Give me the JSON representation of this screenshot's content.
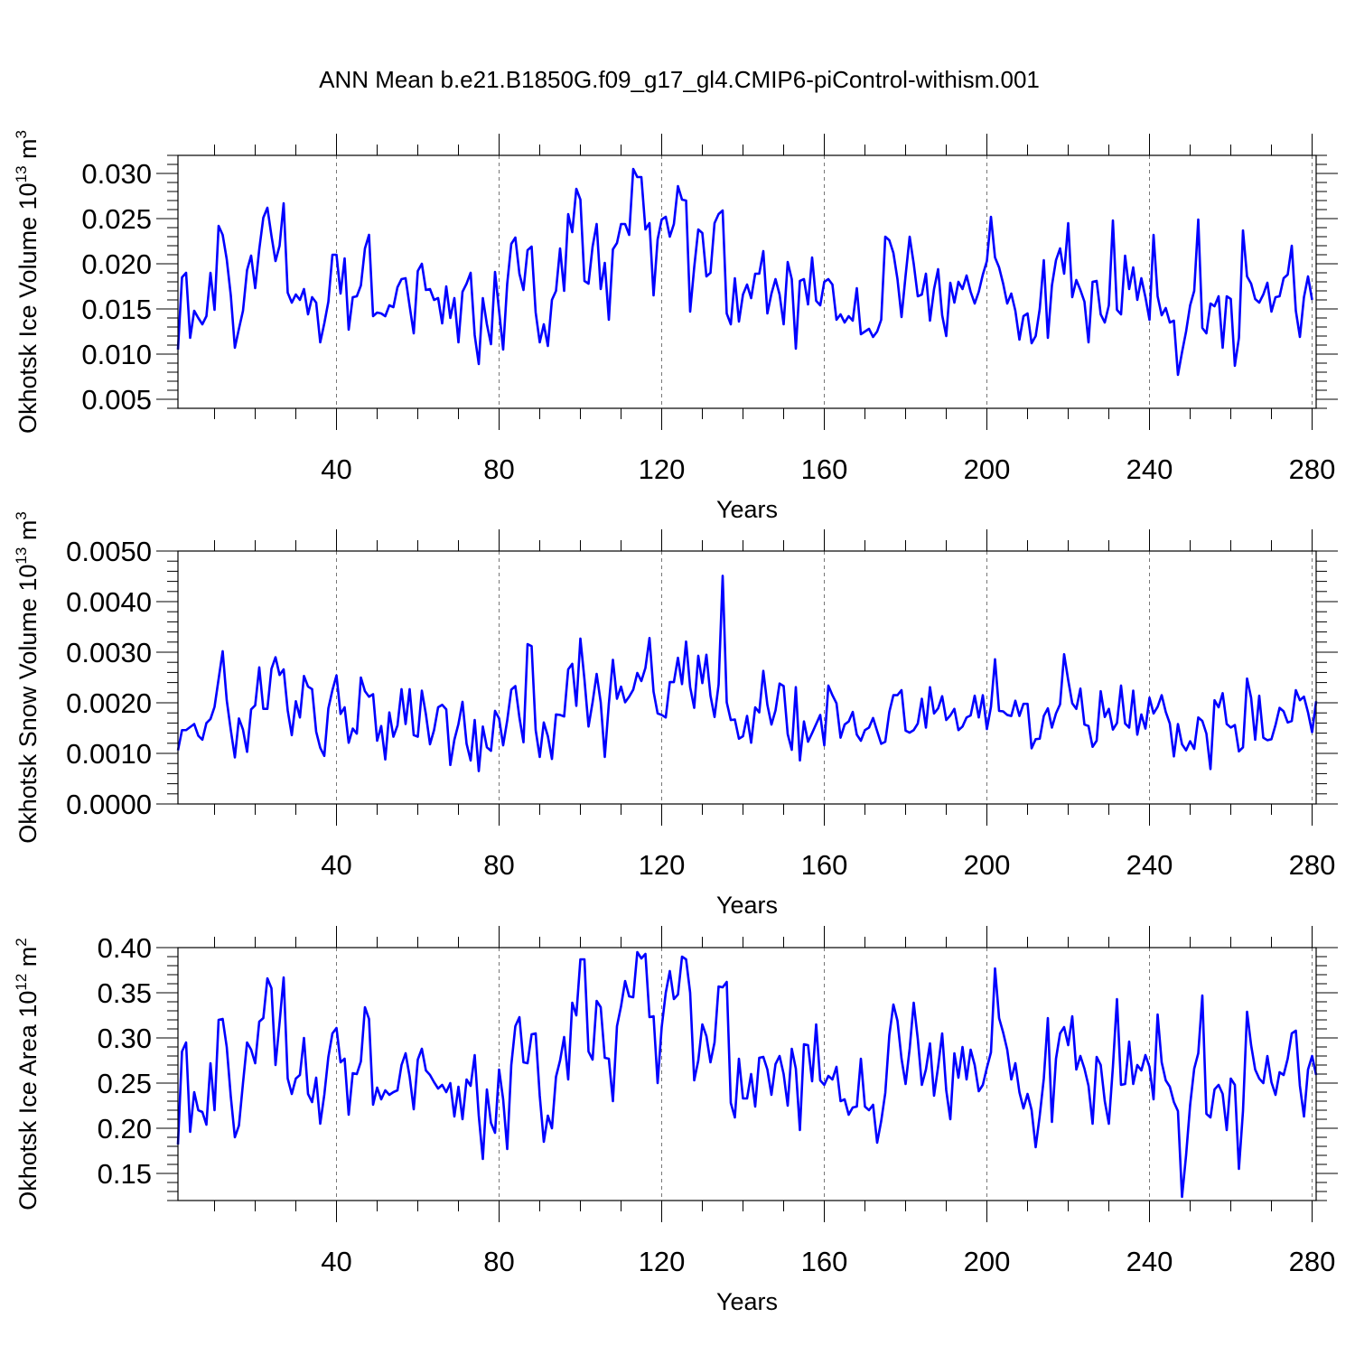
{
  "chart_data": {
    "title": "ANN Mean b.e21.B1850G.f09_g17_gl4.CMIP6-piControl-withism.001",
    "line_color": "#0000ff",
    "panels": [
      {
        "type": "line",
        "ylabel": {
          "main": "Okhotsk Ice Volume 10",
          "exponent": "13",
          "unit": "m",
          "unit_exponent": "3"
        },
        "xlabel": "Years",
        "xlim": [
          1,
          281
        ],
        "xticks": [
          "40",
          "80",
          "120",
          "160",
          "200",
          "240",
          "280"
        ],
        "ylim": [
          0.004,
          0.032
        ],
        "yticks": [
          "0.005",
          "0.010",
          "0.015",
          "0.020",
          "0.025",
          "0.030"
        ],
        "values": [
          0.0105,
          0.0185,
          0.019,
          0.0118,
          0.0148,
          0.014,
          0.0133,
          0.0142,
          0.019,
          0.0149,
          0.0242,
          0.0232,
          0.0205,
          0.0165,
          0.0107,
          0.0128,
          0.0148,
          0.0193,
          0.0209,
          0.0173,
          0.0216,
          0.0251,
          0.0262,
          0.0231,
          0.0203,
          0.022,
          0.0267,
          0.0168,
          0.0157,
          0.0166,
          0.016,
          0.0172,
          0.0144,
          0.0163,
          0.0157,
          0.0113,
          0.0134,
          0.0158,
          0.021,
          0.021,
          0.0167,
          0.0206,
          0.0127,
          0.0163,
          0.0164,
          0.0176,
          0.0217,
          0.0232,
          0.0142,
          0.0146,
          0.0145,
          0.0142,
          0.0154,
          0.0152,
          0.0174,
          0.0183,
          0.0184,
          0.0153,
          0.0123,
          0.0192,
          0.02,
          0.0171,
          0.0172,
          0.016,
          0.0162,
          0.0134,
          0.0175,
          0.014,
          0.0162,
          0.0113,
          0.0169,
          0.0178,
          0.019,
          0.0121,
          0.0089,
          0.0162,
          0.0133,
          0.0111,
          0.0191,
          0.0148,
          0.0105,
          0.0178,
          0.0222,
          0.0229,
          0.0189,
          0.0171,
          0.0215,
          0.0219,
          0.0146,
          0.0113,
          0.0133,
          0.0109,
          0.016,
          0.017,
          0.0217,
          0.017,
          0.0255,
          0.0235,
          0.0283,
          0.0271,
          0.0181,
          0.0178,
          0.0219,
          0.0244,
          0.0172,
          0.0201,
          0.0138,
          0.0216,
          0.0223,
          0.0244,
          0.0244,
          0.0232,
          0.0305,
          0.0296,
          0.0296,
          0.0238,
          0.0245,
          0.0165,
          0.0227,
          0.0249,
          0.0252,
          0.023,
          0.0244,
          0.0286,
          0.0271,
          0.027,
          0.0147,
          0.0196,
          0.0238,
          0.0234,
          0.0186,
          0.019,
          0.0245,
          0.0255,
          0.0259,
          0.0145,
          0.0133,
          0.0184,
          0.0136,
          0.0166,
          0.0177,
          0.0162,
          0.0189,
          0.0189,
          0.0214,
          0.0145,
          0.0167,
          0.0183,
          0.0166,
          0.0133,
          0.0202,
          0.0183,
          0.0106,
          0.0181,
          0.0183,
          0.0155,
          0.0207,
          0.0159,
          0.0154,
          0.018,
          0.0183,
          0.0177,
          0.0138,
          0.0144,
          0.0135,
          0.0142,
          0.0137,
          0.0173,
          0.0122,
          0.0125,
          0.0128,
          0.0119,
          0.0125,
          0.0138,
          0.023,
          0.0226,
          0.0212,
          0.0183,
          0.0141,
          0.0187,
          0.023,
          0.02,
          0.0164,
          0.0166,
          0.0189,
          0.0137,
          0.0172,
          0.0194,
          0.0143,
          0.012,
          0.0179,
          0.0157,
          0.018,
          0.0172,
          0.0187,
          0.0169,
          0.0156,
          0.0169,
          0.0188,
          0.0203,
          0.0252,
          0.0207,
          0.0196,
          0.0178,
          0.0156,
          0.0167,
          0.0148,
          0.0116,
          0.0142,
          0.0145,
          0.0112,
          0.012,
          0.015,
          0.0204,
          0.0118,
          0.0176,
          0.0204,
          0.0217,
          0.0189,
          0.0245,
          0.0163,
          0.0182,
          0.0171,
          0.0158,
          0.0113,
          0.018,
          0.0181,
          0.0144,
          0.0135,
          0.0154,
          0.0248,
          0.0149,
          0.0144,
          0.0209,
          0.0172,
          0.0196,
          0.016,
          0.0184,
          0.0163,
          0.0138,
          0.0232,
          0.0164,
          0.0143,
          0.0151,
          0.0135,
          0.0137,
          0.0077,
          0.0102,
          0.0125,
          0.0154,
          0.017,
          0.0249,
          0.0129,
          0.0123,
          0.0156,
          0.0153,
          0.0164,
          0.0107,
          0.0164,
          0.0161,
          0.0087,
          0.0118,
          0.0237,
          0.0186,
          0.0178,
          0.0161,
          0.0157,
          0.0166,
          0.0179,
          0.0147,
          0.0163,
          0.0164,
          0.0184,
          0.0188,
          0.022,
          0.0148,
          0.0119,
          0.0163,
          0.0186,
          0.016
        ]
      },
      {
        "type": "line",
        "ylabel": {
          "main": "Okhotsk Snow Volume 10",
          "exponent": "13",
          "unit": "m",
          "unit_exponent": "3"
        },
        "xlabel": "Years",
        "xlim": [
          1,
          281
        ],
        "xticks": [
          "40",
          "80",
          "120",
          "160",
          "200",
          "240",
          "280"
        ],
        "ylim": [
          0.0,
          0.005
        ],
        "yticks": [
          "0.0000",
          "0.0010",
          "0.0020",
          "0.0030",
          "0.0040",
          "0.0050"
        ],
        "values": [
          0.00106,
          0.00146,
          0.00146,
          0.00152,
          0.00158,
          0.00135,
          0.00127,
          0.0016,
          0.00168,
          0.00192,
          0.00247,
          0.00302,
          0.00205,
          0.00146,
          0.00092,
          0.00169,
          0.00147,
          0.00103,
          0.00187,
          0.00195,
          0.0027,
          0.00188,
          0.00188,
          0.00267,
          0.0029,
          0.00255,
          0.00266,
          0.00185,
          0.00136,
          0.00203,
          0.00171,
          0.00253,
          0.00232,
          0.00227,
          0.00143,
          0.00111,
          0.00095,
          0.00189,
          0.00225,
          0.00254,
          0.00178,
          0.00191,
          0.00121,
          0.00149,
          0.00139,
          0.0025,
          0.00223,
          0.00212,
          0.00217,
          0.00125,
          0.00154,
          0.00088,
          0.00181,
          0.00133,
          0.00155,
          0.00227,
          0.00158,
          0.00227,
          0.00136,
          0.00133,
          0.00224,
          0.00177,
          0.00118,
          0.00146,
          0.00191,
          0.00196,
          0.00187,
          0.00077,
          0.00127,
          0.00158,
          0.00202,
          0.00119,
          0.00086,
          0.00166,
          0.00065,
          0.00153,
          0.00112,
          0.00105,
          0.00184,
          0.00169,
          0.00116,
          0.00165,
          0.00226,
          0.00233,
          0.00171,
          0.00122,
          0.00316,
          0.00312,
          0.00146,
          0.00093,
          0.00161,
          0.00134,
          0.00089,
          0.00177,
          0.00176,
          0.00173,
          0.00266,
          0.00277,
          0.00194,
          0.00327,
          0.00246,
          0.00153,
          0.00201,
          0.00257,
          0.00201,
          0.00093,
          0.00198,
          0.00285,
          0.00208,
          0.00232,
          0.00201,
          0.00212,
          0.00226,
          0.00259,
          0.00243,
          0.00269,
          0.00328,
          0.00222,
          0.00179,
          0.00176,
          0.00171,
          0.00241,
          0.00241,
          0.00289,
          0.00237,
          0.00321,
          0.00231,
          0.0019,
          0.00293,
          0.00239,
          0.00295,
          0.00214,
          0.00172,
          0.00236,
          0.00451,
          0.00201,
          0.00166,
          0.00167,
          0.00129,
          0.00134,
          0.00174,
          0.00121,
          0.00191,
          0.00181,
          0.00263,
          0.00196,
          0.00157,
          0.00185,
          0.00238,
          0.00233,
          0.00138,
          0.00107,
          0.00231,
          0.00086,
          0.00163,
          0.00123,
          0.0014,
          0.00158,
          0.00176,
          0.00116,
          0.00234,
          0.00215,
          0.00199,
          0.00131,
          0.00157,
          0.00163,
          0.00182,
          0.00137,
          0.00125,
          0.00146,
          0.00151,
          0.0017,
          0.00144,
          0.00119,
          0.00123,
          0.00182,
          0.00215,
          0.00215,
          0.00225,
          0.00145,
          0.00141,
          0.00146,
          0.00159,
          0.00208,
          0.00151,
          0.00231,
          0.00179,
          0.00189,
          0.00213,
          0.00166,
          0.00175,
          0.00188,
          0.00146,
          0.00153,
          0.00171,
          0.00175,
          0.00214,
          0.00171,
          0.00215,
          0.00148,
          0.00192,
          0.00286,
          0.00184,
          0.00183,
          0.00176,
          0.00174,
          0.00204,
          0.00174,
          0.00198,
          0.00198,
          0.0011,
          0.00128,
          0.00129,
          0.00174,
          0.00189,
          0.00151,
          0.00179,
          0.00197,
          0.00296,
          0.00245,
          0.00199,
          0.00188,
          0.00228,
          0.00157,
          0.00154,
          0.00113,
          0.00125,
          0.00223,
          0.00172,
          0.00188,
          0.00147,
          0.0016,
          0.00234,
          0.00159,
          0.00151,
          0.00224,
          0.00137,
          0.00177,
          0.00149,
          0.0021,
          0.00179,
          0.00192,
          0.00215,
          0.00182,
          0.00159,
          0.00094,
          0.00158,
          0.00118,
          0.00106,
          0.00124,
          0.00109,
          0.00171,
          0.00164,
          0.00139,
          0.00069,
          0.00205,
          0.00191,
          0.00219,
          0.00158,
          0.00151,
          0.00156,
          0.00104,
          0.00112,
          0.00248,
          0.0021,
          0.00127,
          0.00214,
          0.00131,
          0.00126,
          0.00128,
          0.00156,
          0.0019,
          0.00183,
          0.00161,
          0.00164,
          0.00225,
          0.00205,
          0.00212,
          0.00181,
          0.00142,
          0.00203
        ]
      },
      {
        "type": "line",
        "ylabel": {
          "main": "Okhotsk Ice Area 10",
          "exponent": "12",
          "unit": "m",
          "unit_exponent": "2"
        },
        "xlabel": "Years",
        "xlim": [
          1,
          281
        ],
        "xticks": [
          "40",
          "80",
          "120",
          "160",
          "200",
          "240",
          "280"
        ],
        "ylim": [
          0.12,
          0.4
        ],
        "yticks": [
          "0.15",
          "0.20",
          "0.25",
          "0.30",
          "0.35",
          "0.40"
        ],
        "values": [
          0.182,
          0.285,
          0.295,
          0.196,
          0.24,
          0.22,
          0.218,
          0.204,
          0.272,
          0.22,
          0.32,
          0.321,
          0.29,
          0.235,
          0.19,
          0.203,
          0.25,
          0.295,
          0.287,
          0.272,
          0.318,
          0.322,
          0.366,
          0.355,
          0.27,
          0.317,
          0.367,
          0.255,
          0.238,
          0.255,
          0.259,
          0.3,
          0.238,
          0.229,
          0.256,
          0.205,
          0.237,
          0.279,
          0.305,
          0.311,
          0.273,
          0.277,
          0.215,
          0.261,
          0.26,
          0.274,
          0.334,
          0.321,
          0.226,
          0.245,
          0.232,
          0.242,
          0.237,
          0.24,
          0.242,
          0.27,
          0.283,
          0.257,
          0.221,
          0.276,
          0.288,
          0.264,
          0.259,
          0.251,
          0.244,
          0.248,
          0.24,
          0.25,
          0.213,
          0.246,
          0.21,
          0.254,
          0.247,
          0.281,
          0.214,
          0.166,
          0.243,
          0.206,
          0.195,
          0.265,
          0.232,
          0.177,
          0.27,
          0.313,
          0.323,
          0.273,
          0.272,
          0.304,
          0.305,
          0.236,
          0.185,
          0.214,
          0.2,
          0.257,
          0.275,
          0.301,
          0.254,
          0.339,
          0.325,
          0.387,
          0.387,
          0.285,
          0.276,
          0.341,
          0.334,
          0.278,
          0.277,
          0.23,
          0.313,
          0.335,
          0.363,
          0.346,
          0.345,
          0.395,
          0.388,
          0.393,
          0.323,
          0.324,
          0.25,
          0.312,
          0.35,
          0.374,
          0.343,
          0.348,
          0.39,
          0.387,
          0.35,
          0.253,
          0.275,
          0.315,
          0.302,
          0.273,
          0.295,
          0.357,
          0.356,
          0.362,
          0.228,
          0.212,
          0.277,
          0.233,
          0.233,
          0.26,
          0.224,
          0.278,
          0.279,
          0.265,
          0.237,
          0.271,
          0.28,
          0.26,
          0.225,
          0.288,
          0.266,
          0.198,
          0.293,
          0.292,
          0.252,
          0.315,
          0.253,
          0.248,
          0.258,
          0.254,
          0.268,
          0.23,
          0.232,
          0.215,
          0.223,
          0.224,
          0.277,
          0.224,
          0.22,
          0.226,
          0.184,
          0.208,
          0.239,
          0.303,
          0.337,
          0.319,
          0.277,
          0.249,
          0.288,
          0.339,
          0.299,
          0.248,
          0.265,
          0.294,
          0.236,
          0.268,
          0.305,
          0.242,
          0.21,
          0.283,
          0.256,
          0.29,
          0.254,
          0.287,
          0.27,
          0.241,
          0.248,
          0.267,
          0.284,
          0.377,
          0.322,
          0.306,
          0.287,
          0.254,
          0.272,
          0.24,
          0.222,
          0.238,
          0.22,
          0.179,
          0.214,
          0.255,
          0.322,
          0.207,
          0.277,
          0.305,
          0.312,
          0.292,
          0.324,
          0.265,
          0.28,
          0.266,
          0.247,
          0.205,
          0.279,
          0.27,
          0.23,
          0.205,
          0.268,
          0.343,
          0.248,
          0.249,
          0.296,
          0.249,
          0.27,
          0.264,
          0.281,
          0.268,
          0.232,
          0.326,
          0.273,
          0.253,
          0.246,
          0.229,
          0.219,
          0.124,
          0.17,
          0.226,
          0.266,
          0.283,
          0.347,
          0.216,
          0.212,
          0.243,
          0.248,
          0.238,
          0.198,
          0.255,
          0.248,
          0.155,
          0.219,
          0.329,
          0.292,
          0.265,
          0.255,
          0.25,
          0.28,
          0.251,
          0.237,
          0.262,
          0.259,
          0.277,
          0.305,
          0.308,
          0.247,
          0.213,
          0.265,
          0.28,
          0.259
        ]
      }
    ]
  }
}
